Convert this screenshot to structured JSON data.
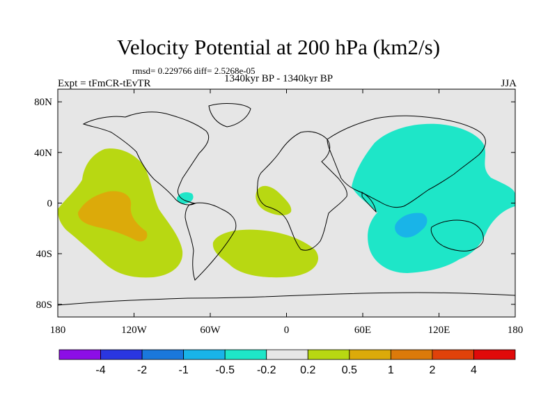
{
  "title": "Velocity Potential at 200 hPa (km2/s)",
  "stats_text": "rmsd= 0.229766 diff= 2.5268e-05",
  "left_label": "Expt = tFmCR-tEvTR",
  "center_label": "1340kyr BP - 1340kyr BP",
  "right_label": "JJA",
  "map": {
    "projection": "cylindrical equidistant",
    "lon_range": [
      -180,
      180
    ],
    "lat_range": [
      -90,
      90
    ],
    "background_color": "#e6e6e6",
    "x_ticks": [
      {
        "lon": -180,
        "label": "180"
      },
      {
        "lon": -120,
        "label": "120W"
      },
      {
        "lon": -60,
        "label": "60W"
      },
      {
        "lon": 0,
        "label": "0"
      },
      {
        "lon": 60,
        "label": "60E"
      },
      {
        "lon": 120,
        "label": "120E"
      },
      {
        "lon": 180,
        "label": "180"
      }
    ],
    "y_ticks": [
      {
        "lat": 80,
        "label": "80N"
      },
      {
        "lat": 40,
        "label": "40N"
      },
      {
        "lat": 0,
        "label": "0"
      },
      {
        "lat": -40,
        "label": "40S"
      },
      {
        "lat": -80,
        "label": "80S"
      }
    ]
  },
  "colorbar": {
    "colors": [
      "#8c0ee6",
      "#2a36e0",
      "#1a78dc",
      "#19b4e8",
      "#1ee6c8",
      "#e6e6e6",
      "#b8d812",
      "#dcaa0a",
      "#dc7a0a",
      "#e0420a",
      "#e00a0a"
    ],
    "labels": [
      "-4",
      "-2",
      "-1",
      "-0.5",
      "-0.2",
      "0.2",
      "0.5",
      "1",
      "2",
      "4"
    ]
  },
  "chart_data": {
    "type": "heatmap",
    "variable": "Velocity Potential at 200 hPa",
    "units": "km2/s",
    "contour_levels": [
      -4,
      -2,
      -1,
      -0.5,
      -0.2,
      0.2,
      0.5,
      1,
      2,
      4
    ],
    "regions": [
      {
        "name": "east-pacific-positive",
        "level_range": [
          0.5,
          1
        ],
        "center_lon": -140,
        "center_lat": 0
      },
      {
        "name": "east-pacific-core",
        "level_range": [
          1,
          2
        ],
        "center_lon": -135,
        "center_lat": -5
      },
      {
        "name": "south-atlantic-positive",
        "level_range": [
          0.5,
          1
        ],
        "center_lon": -25,
        "center_lat": -40
      },
      {
        "name": "west-africa-positive",
        "level_range": [
          0.5,
          1
        ],
        "center_lon": -10,
        "center_lat": 5
      },
      {
        "name": "asia-indopacific-negative",
        "level_range": [
          -0.5,
          -0.2
        ],
        "center_lon": 100,
        "center_lat": 10
      },
      {
        "name": "indian-ocean-core",
        "level_range": [
          -1,
          -0.5
        ],
        "center_lon": 100,
        "center_lat": -20
      },
      {
        "name": "central-america-negative",
        "level_range": [
          -0.5,
          -0.2
        ],
        "center_lon": -80,
        "center_lat": 5
      }
    ]
  }
}
